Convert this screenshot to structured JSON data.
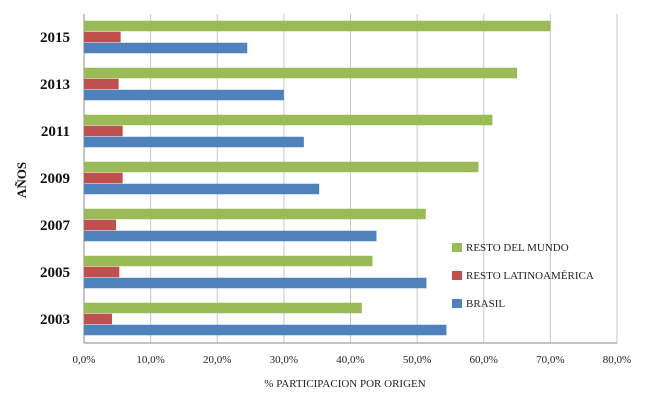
{
  "chart_data": {
    "type": "bar",
    "orientation": "horizontal",
    "title": "",
    "xlabel": "% PARTICIPACION POR ORIGEN",
    "ylabel": "AÑOS",
    "xlim": [
      0,
      80
    ],
    "x_ticks": [
      "0,0%",
      "10,0%",
      "20,0%",
      "30,0%",
      "40,0%",
      "50,0%",
      "60,0%",
      "70,0%",
      "80,0%"
    ],
    "categories": [
      "2015",
      "2013",
      "2011",
      "2009",
      "2007",
      "2005",
      "2003"
    ],
    "grid": "vertical",
    "legend_position": "lower-right",
    "series": [
      {
        "name": "RESTO DEL MUNDO",
        "color": "#9bbb59",
        "values": [
          70.0,
          65.0,
          61.3,
          59.2,
          51.3,
          43.3,
          41.7
        ]
      },
      {
        "name": "RESTO LATINOAMÉRICA",
        "color": "#c0504d",
        "values": [
          5.5,
          5.2,
          5.8,
          5.8,
          4.8,
          5.3,
          4.2
        ]
      },
      {
        "name": "BRASIL",
        "color": "#4f81bd",
        "values": [
          24.5,
          30.0,
          33.0,
          35.3,
          43.9,
          51.4,
          54.4
        ]
      }
    ]
  }
}
